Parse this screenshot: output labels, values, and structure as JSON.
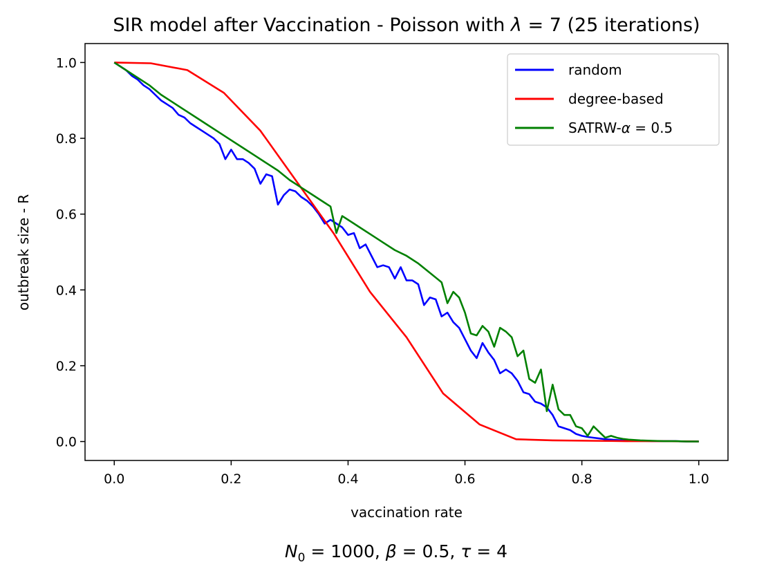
{
  "chart_data": {
    "type": "line",
    "title": {
      "prefix": "SIR model after Vaccination - Poisson with ",
      "lambda_symbol": "λ",
      "suffix": " = 7 (25 iterations)"
    },
    "xlabel": "vaccination rate",
    "ylabel": "outbreak size - R",
    "xlim": [
      -0.05,
      1.05
    ],
    "ylim": [
      -0.05,
      1.05
    ],
    "x_ticks": [
      0.0,
      0.2,
      0.4,
      0.6,
      0.8,
      1.0
    ],
    "x_tick_labels": [
      "0.0",
      "0.2",
      "0.4",
      "0.6",
      "0.8",
      "1.0"
    ],
    "y_ticks": [
      0.0,
      0.2,
      0.4,
      0.6,
      0.8,
      1.0
    ],
    "y_tick_labels": [
      "0.0",
      "0.2",
      "0.4",
      "0.6",
      "0.8",
      "1.0"
    ],
    "grid": false,
    "legend_position": "top-right",
    "caption": {
      "n_symbol": "N",
      "n_subscript": "0",
      "n_text": " = 1000, ",
      "beta_symbol": "β",
      "beta_text": " = 0.5, ",
      "tau_symbol": "τ",
      "tau_text": " = 4"
    },
    "series": [
      {
        "name": "random",
        "legend_text": "random",
        "color": "#0000ff",
        "x": [
          0.0,
          0.01,
          0.02,
          0.03,
          0.04,
          0.05,
          0.06,
          0.07,
          0.08,
          0.09,
          0.1,
          0.11,
          0.12,
          0.13,
          0.14,
          0.15,
          0.16,
          0.17,
          0.18,
          0.19,
          0.2,
          0.21,
          0.22,
          0.23,
          0.24,
          0.25,
          0.26,
          0.27,
          0.28,
          0.29,
          0.3,
          0.31,
          0.32,
          0.33,
          0.34,
          0.35,
          0.36,
          0.37,
          0.38,
          0.39,
          0.4,
          0.41,
          0.42,
          0.43,
          0.44,
          0.45,
          0.46,
          0.47,
          0.48,
          0.49,
          0.5,
          0.51,
          0.52,
          0.53,
          0.54,
          0.55,
          0.56,
          0.57,
          0.58,
          0.59,
          0.6,
          0.61,
          0.62,
          0.63,
          0.64,
          0.65,
          0.66,
          0.67,
          0.68,
          0.69,
          0.7,
          0.71,
          0.72,
          0.73,
          0.74,
          0.75,
          0.76,
          0.77,
          0.78,
          0.79,
          0.8,
          0.81,
          0.82,
          0.83,
          0.84,
          0.85,
          0.86,
          0.87,
          0.88,
          0.89,
          0.9,
          0.92,
          0.94,
          0.96,
          0.98,
          1.0
        ],
        "y": [
          1.0,
          0.99,
          0.98,
          0.965,
          0.955,
          0.94,
          0.93,
          0.915,
          0.9,
          0.89,
          0.88,
          0.862,
          0.855,
          0.84,
          0.83,
          0.82,
          0.81,
          0.8,
          0.785,
          0.745,
          0.77,
          0.745,
          0.745,
          0.735,
          0.72,
          0.68,
          0.705,
          0.7,
          0.625,
          0.65,
          0.665,
          0.66,
          0.645,
          0.635,
          0.62,
          0.6,
          0.575,
          0.585,
          0.575,
          0.565,
          0.545,
          0.55,
          0.51,
          0.52,
          0.49,
          0.46,
          0.465,
          0.46,
          0.43,
          0.46,
          0.425,
          0.425,
          0.415,
          0.36,
          0.38,
          0.375,
          0.33,
          0.34,
          0.315,
          0.3,
          0.27,
          0.24,
          0.22,
          0.26,
          0.235,
          0.215,
          0.18,
          0.19,
          0.18,
          0.16,
          0.13,
          0.125,
          0.105,
          0.1,
          0.09,
          0.07,
          0.04,
          0.035,
          0.03,
          0.02,
          0.015,
          0.012,
          0.01,
          0.008,
          0.006,
          0.005,
          0.004,
          0.003,
          0.003,
          0.002,
          0.002,
          0.001,
          0.001,
          0.001,
          0.0,
          0.0
        ]
      },
      {
        "name": "degree-based",
        "legend_text": "degree-based",
        "color": "#ff0000",
        "x": [
          0.0,
          0.0625,
          0.125,
          0.1875,
          0.25,
          0.3125,
          0.375,
          0.4375,
          0.5,
          0.5625,
          0.625,
          0.6875,
          0.75,
          0.8125,
          0.875,
          0.9375,
          1.0
        ],
        "y": [
          1.0,
          0.998,
          0.98,
          0.92,
          0.82,
          0.685,
          0.55,
          0.395,
          0.275,
          0.127,
          0.045,
          0.006,
          0.003,
          0.002,
          0.001,
          0.001,
          0.0
        ]
      },
      {
        "name": "SATRW-α = 0.5",
        "legend_text": "SATRW-",
        "legend_symbol": "α",
        "legend_suffix": " = 0.5",
        "color": "#008000",
        "x": [
          0.0,
          0.02,
          0.04,
          0.06,
          0.08,
          0.1,
          0.12,
          0.14,
          0.16,
          0.18,
          0.2,
          0.22,
          0.24,
          0.26,
          0.28,
          0.3,
          0.32,
          0.34,
          0.36,
          0.37,
          0.38,
          0.39,
          0.4,
          0.42,
          0.44,
          0.46,
          0.48,
          0.5,
          0.52,
          0.54,
          0.56,
          0.57,
          0.58,
          0.59,
          0.6,
          0.61,
          0.62,
          0.63,
          0.64,
          0.65,
          0.66,
          0.67,
          0.68,
          0.69,
          0.7,
          0.71,
          0.72,
          0.73,
          0.74,
          0.75,
          0.76,
          0.77,
          0.78,
          0.79,
          0.8,
          0.81,
          0.82,
          0.83,
          0.84,
          0.85,
          0.86,
          0.87,
          0.88,
          0.9,
          0.92,
          0.94,
          0.96,
          0.98,
          1.0
        ],
        "y": [
          1.0,
          0.98,
          0.96,
          0.94,
          0.915,
          0.895,
          0.875,
          0.855,
          0.835,
          0.815,
          0.795,
          0.775,
          0.755,
          0.735,
          0.715,
          0.69,
          0.67,
          0.65,
          0.63,
          0.62,
          0.55,
          0.595,
          0.585,
          0.565,
          0.545,
          0.525,
          0.505,
          0.49,
          0.47,
          0.445,
          0.42,
          0.365,
          0.395,
          0.38,
          0.34,
          0.285,
          0.28,
          0.305,
          0.29,
          0.25,
          0.3,
          0.29,
          0.275,
          0.225,
          0.24,
          0.165,
          0.155,
          0.19,
          0.08,
          0.15,
          0.085,
          0.07,
          0.07,
          0.04,
          0.035,
          0.015,
          0.04,
          0.025,
          0.01,
          0.015,
          0.01,
          0.007,
          0.005,
          0.003,
          0.002,
          0.001,
          0.001,
          0.0,
          0.0
        ]
      }
    ]
  }
}
